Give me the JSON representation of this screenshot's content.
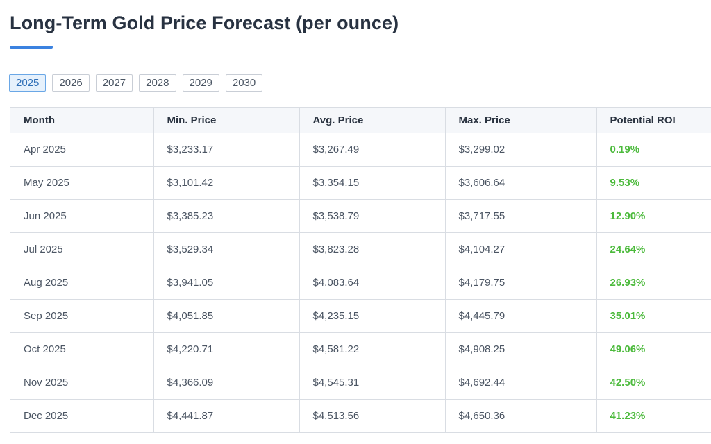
{
  "page": {
    "title": "Long-Term Gold Price Forecast (per ounce)",
    "accent_color": "#3b82e0"
  },
  "year_tabs": {
    "selected": "2025",
    "items": [
      {
        "label": "2025"
      },
      {
        "label": "2026"
      },
      {
        "label": "2027"
      },
      {
        "label": "2028"
      },
      {
        "label": "2029"
      },
      {
        "label": "2030"
      }
    ]
  },
  "table": {
    "headers": {
      "month": "Month",
      "min": "Min. Price",
      "avg": "Avg. Price",
      "max": "Max. Price",
      "roi": "Potential ROI"
    },
    "roi_color": "#4cba3c",
    "rows": [
      {
        "month": "Apr 2025",
        "min": "$3,233.17",
        "avg": "$3,267.49",
        "max": "$3,299.02",
        "roi": "0.19%"
      },
      {
        "month": "May 2025",
        "min": "$3,101.42",
        "avg": "$3,354.15",
        "max": "$3,606.64",
        "roi": "9.53%"
      },
      {
        "month": "Jun 2025",
        "min": "$3,385.23",
        "avg": "$3,538.79",
        "max": "$3,717.55",
        "roi": "12.90%"
      },
      {
        "month": "Jul 2025",
        "min": "$3,529.34",
        "avg": "$3,823.28",
        "max": "$4,104.27",
        "roi": "24.64%"
      },
      {
        "month": "Aug 2025",
        "min": "$3,941.05",
        "avg": "$4,083.64",
        "max": "$4,179.75",
        "roi": "26.93%"
      },
      {
        "month": "Sep 2025",
        "min": "$4,051.85",
        "avg": "$4,235.15",
        "max": "$4,445.79",
        "roi": "35.01%"
      },
      {
        "month": "Oct 2025",
        "min": "$4,220.71",
        "avg": "$4,581.22",
        "max": "$4,908.25",
        "roi": "49.06%"
      },
      {
        "month": "Nov 2025",
        "min": "$4,366.09",
        "avg": "$4,545.31",
        "max": "$4,692.44",
        "roi": "42.50%"
      },
      {
        "month": "Dec 2025",
        "min": "$4,441.87",
        "avg": "$4,513.56",
        "max": "$4,650.36",
        "roi": "41.23%"
      }
    ]
  }
}
